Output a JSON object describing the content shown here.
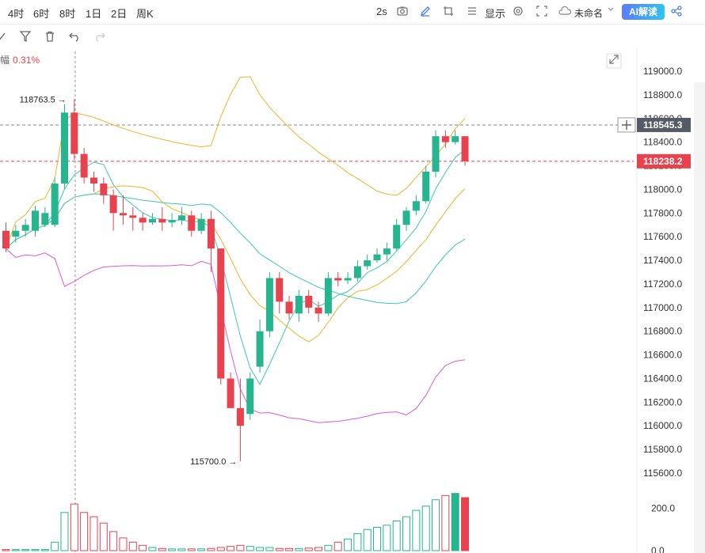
{
  "toolbar": {
    "timeframes": [
      "4时",
      "6时",
      "8时",
      "1日",
      "2日",
      "周K"
    ],
    "interval": "2s",
    "display_label": "显示",
    "layout_name": "未命名",
    "ai_label": "AI解读"
  },
  "change": {
    "label": "幅",
    "value": "0.31%"
  },
  "colors": {
    "up": "#26b58e",
    "down": "#e8424f",
    "ma_yellow": "#f0b429",
    "ma_teal": "#3cc8b4",
    "ma_magenta": "#d95bcf"
  },
  "chart_data": {
    "type": "candlestick",
    "y_ticks": [
      "119000.0",
      "118800.0",
      "118600.0",
      "118400.0",
      "118200.0",
      "118000.0",
      "117800.0",
      "117600.0",
      "117400.0",
      "117200.0",
      "117000.0",
      "116800.0",
      "116600.0",
      "116400.0",
      "116200.0",
      "116000.0",
      "115800.0",
      "115600.0"
    ],
    "ylim": [
      115500,
      119100
    ],
    "high_label": "118763.5",
    "high_value": 118763.5,
    "low_label": "115700.0",
    "low_value": 115700.0,
    "current_price": "118545.3",
    "current_value": 118545.3,
    "last_price": "118238.2",
    "last_value": 118238.2,
    "candles": [
      [
        117650,
        117500,
        117720,
        117470
      ],
      [
        117600,
        117650,
        117700,
        117550
      ],
      [
        117650,
        117700,
        117750,
        117600
      ],
      [
        117650,
        117820,
        117860,
        117600
      ],
      [
        117700,
        117800,
        117850,
        117680
      ],
      [
        117700,
        118050,
        118100,
        117680
      ],
      [
        118050,
        118650,
        118720,
        118000
      ],
      [
        118650,
        118300,
        118763.5,
        118250
      ],
      [
        118300,
        118100,
        118350,
        118050
      ],
      [
        118100,
        118050,
        118150,
        117980
      ],
      [
        118050,
        117950,
        118100,
        117880
      ],
      [
        117950,
        117800,
        118000,
        117650
      ],
      [
        117800,
        117780,
        117950,
        117700
      ],
      [
        117780,
        117760,
        117850,
        117650
      ],
      [
        117760,
        117720,
        117800,
        117650
      ],
      [
        117720,
        117750,
        117800,
        117700
      ],
      [
        117750,
        117720,
        117850,
        117650
      ],
      [
        117720,
        117740,
        117800,
        117680
      ],
      [
        117740,
        117780,
        117850,
        117700
      ],
      [
        117780,
        117650,
        117820,
        117600
      ],
      [
        117650,
        117750,
        117800,
        117620
      ],
      [
        117750,
        117500,
        117820,
        117300
      ],
      [
        117500,
        116400,
        117500,
        116350
      ],
      [
        116400,
        116150,
        116450,
        116150
      ],
      [
        116150,
        116000,
        116400,
        115700
      ],
      [
        116100,
        116400,
        116450,
        116050
      ],
      [
        116500,
        116800,
        116900,
        116450
      ],
      [
        116800,
        117250,
        117300,
        116750
      ],
      [
        117250,
        117050,
        117300,
        116950
      ],
      [
        117050,
        116950,
        117100,
        116900
      ],
      [
        116950,
        117100,
        117150,
        116880
      ],
      [
        117100,
        117000,
        117150,
        116950
      ],
      [
        117000,
        116950,
        117050,
        116880
      ],
      [
        116950,
        117250,
        117300,
        116930
      ],
      [
        117250,
        117230,
        117300,
        117180
      ],
      [
        117230,
        117250,
        117300,
        117200
      ],
      [
        117250,
        117350,
        117400,
        117220
      ],
      [
        117350,
        117400,
        117450,
        117320
      ],
      [
        117400,
        117450,
        117500,
        117380
      ],
      [
        117450,
        117500,
        117550,
        117400
      ],
      [
        117500,
        117700,
        117750,
        117480
      ],
      [
        117700,
        117820,
        117850,
        117650
      ],
      [
        117820,
        117900,
        117950,
        117780
      ],
      [
        117900,
        118150,
        118200,
        117880
      ],
      [
        118150,
        118450,
        118500,
        118100
      ],
      [
        118450,
        118400,
        118500,
        118350
      ],
      [
        118400,
        118450,
        118500,
        118380
      ],
      [
        118450,
        118238.2,
        118450,
        118200
      ]
    ],
    "volume_ticks": [
      "200.0",
      "0.0"
    ],
    "volume_max": 280,
    "volumes": [
      5,
      5,
      5,
      5,
      5,
      40,
      180,
      220,
      180,
      160,
      130,
      90,
      60,
      40,
      25,
      15,
      10,
      8,
      8,
      8,
      8,
      10,
      15,
      20,
      25,
      20,
      15,
      15,
      10,
      10,
      10,
      12,
      15,
      25,
      40,
      55,
      80,
      100,
      110,
      120,
      140,
      160,
      190,
      210,
      240,
      260,
      270,
      250
    ]
  }
}
